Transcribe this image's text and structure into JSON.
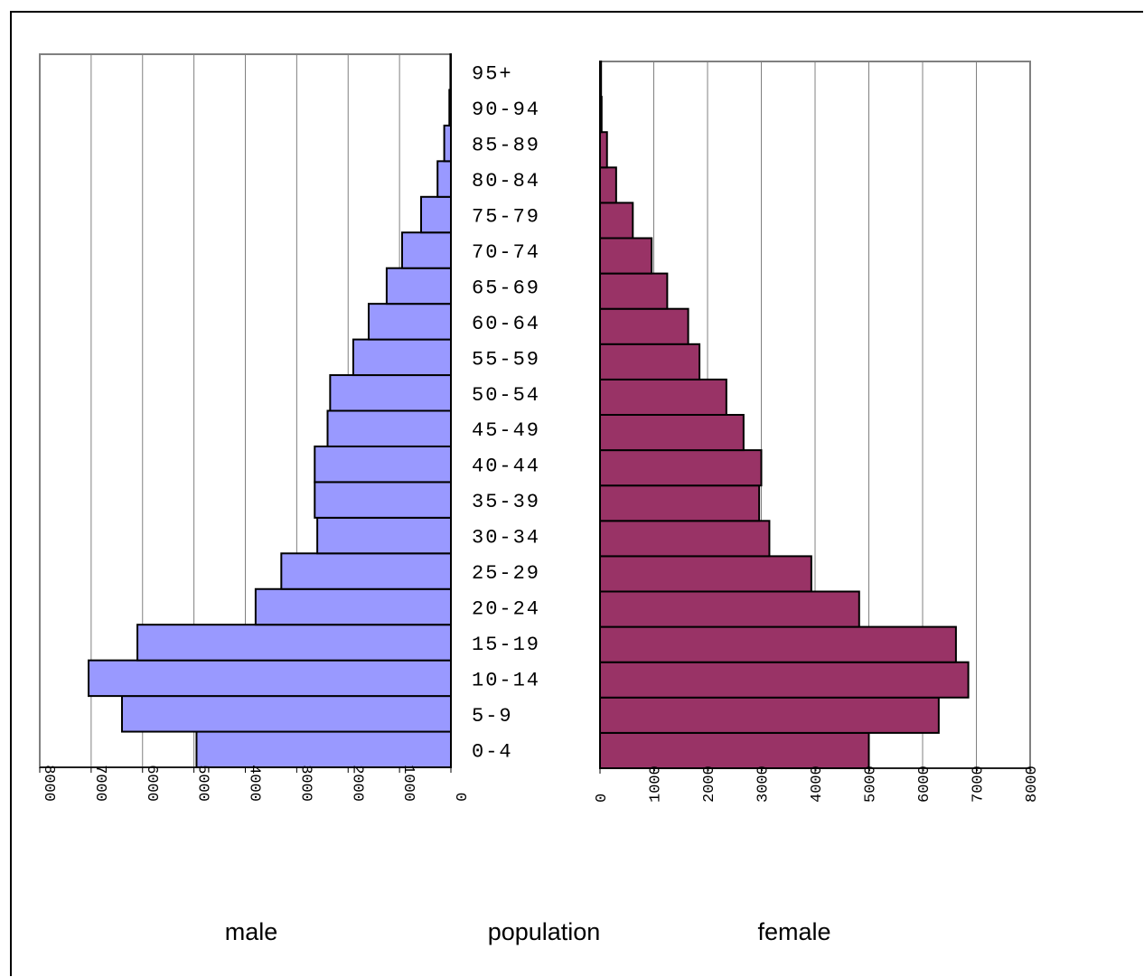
{
  "chart_data": {
    "type": "bar",
    "orientation": "horizontal",
    "layout": "population-pyramid",
    "categories": [
      "0-4",
      "5-9",
      "10-14",
      "15-19",
      "20-24",
      "25-29",
      "30-34",
      "35-39",
      "40-44",
      "45-49",
      "50-54",
      "55-59",
      "60-64",
      "65-69",
      "70-74",
      "75-79",
      "80-84",
      "85-89",
      "90-94",
      "95+"
    ],
    "series": [
      {
        "name": "male",
        "color": "#9999ff",
        "values": [
          4950,
          6400,
          7050,
          6100,
          3800,
          3300,
          2600,
          2650,
          2650,
          2400,
          2350,
          1900,
          1600,
          1250,
          950,
          580,
          260,
          130,
          30,
          10
        ]
      },
      {
        "name": "female",
        "color": "#993366",
        "values": [
          5000,
          6300,
          6850,
          6620,
          4820,
          3930,
          3150,
          2960,
          3000,
          2670,
          2350,
          1850,
          1640,
          1250,
          960,
          610,
          300,
          130,
          30,
          20
        ]
      }
    ],
    "xlim": [
      0,
      8000
    ],
    "x_ticks": [
      "0",
      "1000",
      "2000",
      "3000",
      "4000",
      "5000",
      "6000",
      "7000",
      "8000"
    ],
    "grid": true,
    "captions": {
      "left": "male",
      "center": "population",
      "right": "female"
    }
  }
}
